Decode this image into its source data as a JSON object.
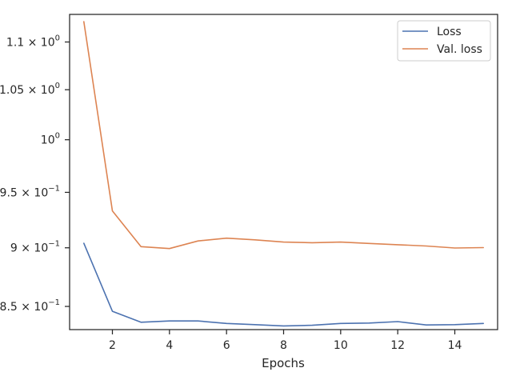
{
  "chart_data": {
    "type": "line",
    "xlabel": "Epochs",
    "ylabel": "",
    "y_scale": "log",
    "xlim": [
      0.5,
      15.5
    ],
    "ylim": [
      0.831,
      1.13
    ],
    "x_ticks": [
      2,
      4,
      6,
      8,
      10,
      12,
      14
    ],
    "y_ticks": [
      {
        "value": 0.85,
        "mantissa": "8.5",
        "exponent": "−1"
      },
      {
        "value": 0.9,
        "mantissa": "9",
        "exponent": "−1"
      },
      {
        "value": 0.95,
        "mantissa": "9.5",
        "exponent": "−1"
      },
      {
        "value": 1.0,
        "mantissa": "",
        "exponent": "0"
      },
      {
        "value": 1.05,
        "mantissa": "1.05",
        "exponent": "0"
      },
      {
        "value": 1.1,
        "mantissa": "1.1",
        "exponent": "0"
      }
    ],
    "x": [
      1,
      2,
      3,
      4,
      5,
      6,
      7,
      8,
      9,
      10,
      11,
      12,
      13,
      14,
      15
    ],
    "series": [
      {
        "name": "Loss",
        "color": "#4c72b0",
        "values": [
          0.904,
          0.846,
          0.837,
          0.838,
          0.838,
          0.836,
          0.835,
          0.834,
          0.8345,
          0.836,
          0.8363,
          0.8375,
          0.8348,
          0.835,
          0.836
        ]
      },
      {
        "name": "Val. loss",
        "color": "#dd8452",
        "values": [
          1.122,
          0.933,
          0.901,
          0.8993,
          0.906,
          0.9085,
          0.907,
          0.905,
          0.9045,
          0.905,
          0.9038,
          0.9027,
          0.9016,
          0.8998,
          0.9002
        ]
      }
    ],
    "legend_position": "top-right",
    "grid": false
  }
}
